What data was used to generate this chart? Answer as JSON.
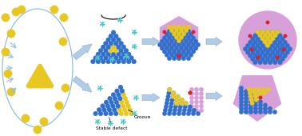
{
  "blue": "#3070cc",
  "yellow": "#e8c820",
  "pink": "#d8a0d8",
  "red": "#dd2020",
  "cyan": "#50c8c8",
  "arrow_color": "#b0cce8",
  "arrow_edge": "#90aac8",
  "ellipse_color": "#90c0e0",
  "background": "#ffffff",
  "label_fontsize": 4.5
}
